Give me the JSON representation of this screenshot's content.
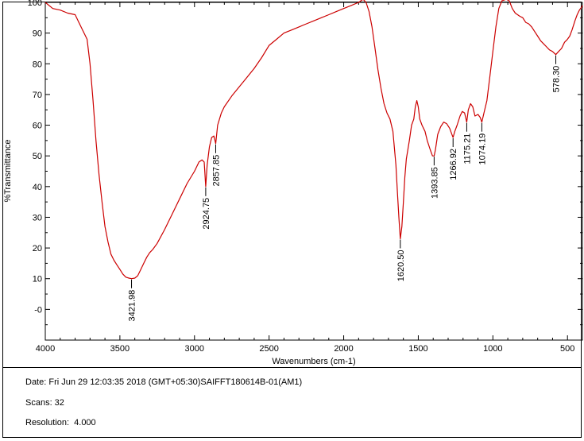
{
  "chart_data": {
    "type": "line",
    "title": "",
    "xlabel": "Wavenumbers (cm-1)",
    "ylabel": "%Transmittance",
    "xlim": [
      4000,
      400
    ],
    "ylim": [
      -10,
      100
    ],
    "x_ticks": [
      4000,
      3500,
      3000,
      2500,
      2000,
      1500,
      1000,
      500
    ],
    "y_ticks": [
      100,
      90,
      80,
      70,
      60,
      50,
      40,
      30,
      20,
      10,
      0
    ],
    "y_tick_labels": [
      "100",
      "90",
      "80",
      "70",
      "60",
      "50",
      "40",
      "30",
      "20",
      "10",
      "-0"
    ],
    "line_color": "#cc0000",
    "series": [
      {
        "points": [
          [
            4000,
            100
          ],
          [
            3950,
            98
          ],
          [
            3900,
            97.5
          ],
          [
            3850,
            96.5
          ],
          [
            3800,
            96
          ],
          [
            3780,
            94
          ],
          [
            3750,
            91
          ],
          [
            3720,
            88
          ],
          [
            3700,
            80
          ],
          [
            3680,
            68
          ],
          [
            3660,
            55
          ],
          [
            3640,
            44
          ],
          [
            3620,
            35
          ],
          [
            3600,
            27
          ],
          [
            3580,
            22
          ],
          [
            3560,
            18
          ],
          [
            3540,
            16
          ],
          [
            3520,
            14.5
          ],
          [
            3500,
            13
          ],
          [
            3480,
            11.5
          ],
          [
            3460,
            10.5
          ],
          [
            3440,
            10.2
          ],
          [
            3421.98,
            10
          ],
          [
            3400,
            10.2
          ],
          [
            3380,
            11
          ],
          [
            3360,
            13
          ],
          [
            3340,
            15
          ],
          [
            3320,
            17
          ],
          [
            3300,
            18.5
          ],
          [
            3280,
            19.5
          ],
          [
            3250,
            21.5
          ],
          [
            3200,
            26
          ],
          [
            3150,
            31
          ],
          [
            3100,
            36
          ],
          [
            3050,
            41
          ],
          [
            3000,
            45
          ],
          [
            2970,
            48
          ],
          [
            2950,
            48.7
          ],
          [
            2935,
            48
          ],
          [
            2924.75,
            40
          ],
          [
            2915,
            47
          ],
          [
            2900,
            53
          ],
          [
            2885,
            56
          ],
          [
            2870,
            56.5
          ],
          [
            2857.85,
            54
          ],
          [
            2845,
            60
          ],
          [
            2820,
            64
          ],
          [
            2800,
            66
          ],
          [
            2750,
            69.5
          ],
          [
            2700,
            72.5
          ],
          [
            2650,
            75.5
          ],
          [
            2600,
            78.5
          ],
          [
            2550,
            82
          ],
          [
            2500,
            86
          ],
          [
            2450,
            88
          ],
          [
            2400,
            90
          ],
          [
            2350,
            91
          ],
          [
            2300,
            92
          ],
          [
            2250,
            93
          ],
          [
            2200,
            94
          ],
          [
            2150,
            95
          ],
          [
            2100,
            96
          ],
          [
            2050,
            97
          ],
          [
            2000,
            98
          ],
          [
            1950,
            99
          ],
          [
            1900,
            100
          ],
          [
            1870,
            101
          ],
          [
            1850,
            100
          ],
          [
            1830,
            97
          ],
          [
            1810,
            92
          ],
          [
            1790,
            85
          ],
          [
            1770,
            78
          ],
          [
            1750,
            72
          ],
          [
            1730,
            67
          ],
          [
            1710,
            64
          ],
          [
            1690,
            62
          ],
          [
            1670,
            58
          ],
          [
            1650,
            47
          ],
          [
            1640,
            38
          ],
          [
            1630,
            30
          ],
          [
            1620.5,
            23
          ],
          [
            1610,
            27
          ],
          [
            1600,
            35
          ],
          [
            1590,
            43
          ],
          [
            1580,
            49
          ],
          [
            1570,
            52
          ],
          [
            1560,
            55
          ],
          [
            1545,
            60
          ],
          [
            1530,
            62
          ],
          [
            1520,
            66
          ],
          [
            1510,
            68
          ],
          [
            1500,
            66
          ],
          [
            1490,
            62
          ],
          [
            1475,
            60
          ],
          [
            1455,
            58
          ],
          [
            1440,
            55
          ],
          [
            1420,
            52
          ],
          [
            1405,
            50
          ],
          [
            1393.85,
            50
          ],
          [
            1385,
            52
          ],
          [
            1370,
            57
          ],
          [
            1350,
            59.5
          ],
          [
            1330,
            61
          ],
          [
            1310,
            60.5
          ],
          [
            1290,
            59
          ],
          [
            1275,
            57
          ],
          [
            1266.92,
            56
          ],
          [
            1255,
            58
          ],
          [
            1240,
            60
          ],
          [
            1220,
            63
          ],
          [
            1205,
            64.5
          ],
          [
            1190,
            64
          ],
          [
            1180,
            62
          ],
          [
            1175.21,
            61
          ],
          [
            1165,
            65
          ],
          [
            1150,
            67
          ],
          [
            1135,
            66
          ],
          [
            1120,
            63
          ],
          [
            1100,
            63.5
          ],
          [
            1085,
            62.5
          ],
          [
            1074.19,
            61
          ],
          [
            1060,
            64
          ],
          [
            1040,
            68
          ],
          [
            1020,
            76
          ],
          [
            1000,
            84
          ],
          [
            980,
            92
          ],
          [
            960,
            98
          ],
          [
            940,
            100.5
          ],
          [
            910,
            101
          ],
          [
            890,
            100.5
          ],
          [
            870,
            98
          ],
          [
            850,
            96.5
          ],
          [
            820,
            95.5
          ],
          [
            800,
            95
          ],
          [
            780,
            93.5
          ],
          [
            760,
            93
          ],
          [
            740,
            92
          ],
          [
            720,
            90.5
          ],
          [
            700,
            89
          ],
          [
            680,
            87.5
          ],
          [
            660,
            86.5
          ],
          [
            640,
            85.5
          ],
          [
            620,
            84.5
          ],
          [
            600,
            84
          ],
          [
            578.3,
            83
          ],
          [
            560,
            84
          ],
          [
            540,
            85
          ],
          [
            520,
            87
          ],
          [
            500,
            88
          ],
          [
            485,
            89
          ],
          [
            470,
            91
          ],
          [
            450,
            94
          ],
          [
            435,
            96
          ],
          [
            420,
            97.5
          ],
          [
            405,
            98.5
          ],
          [
            400,
            99
          ]
        ]
      }
    ],
    "annotations": [
      {
        "x": 3421.98,
        "label": "3421.98"
      },
      {
        "x": 2924.75,
        "label": "2924.75"
      },
      {
        "x": 2857.85,
        "label": "2857.85"
      },
      {
        "x": 1620.5,
        "label": "1620.50"
      },
      {
        "x": 1393.85,
        "label": "1393.85"
      },
      {
        "x": 1266.92,
        "label": "1266.92"
      },
      {
        "x": 1175.21,
        "label": "1175.21"
      },
      {
        "x": 1074.19,
        "label": "1074.19"
      },
      {
        "x": 578.3,
        "label": "578.30"
      }
    ]
  },
  "footer": {
    "date_line": "Date: Fri Jun 29 12:03:35 2018 (GMT+05:30)SAIFFT180614B-01(AM1)",
    "scans_line": "Scans: 32",
    "resolution_line": "Resolution:  4.000"
  }
}
